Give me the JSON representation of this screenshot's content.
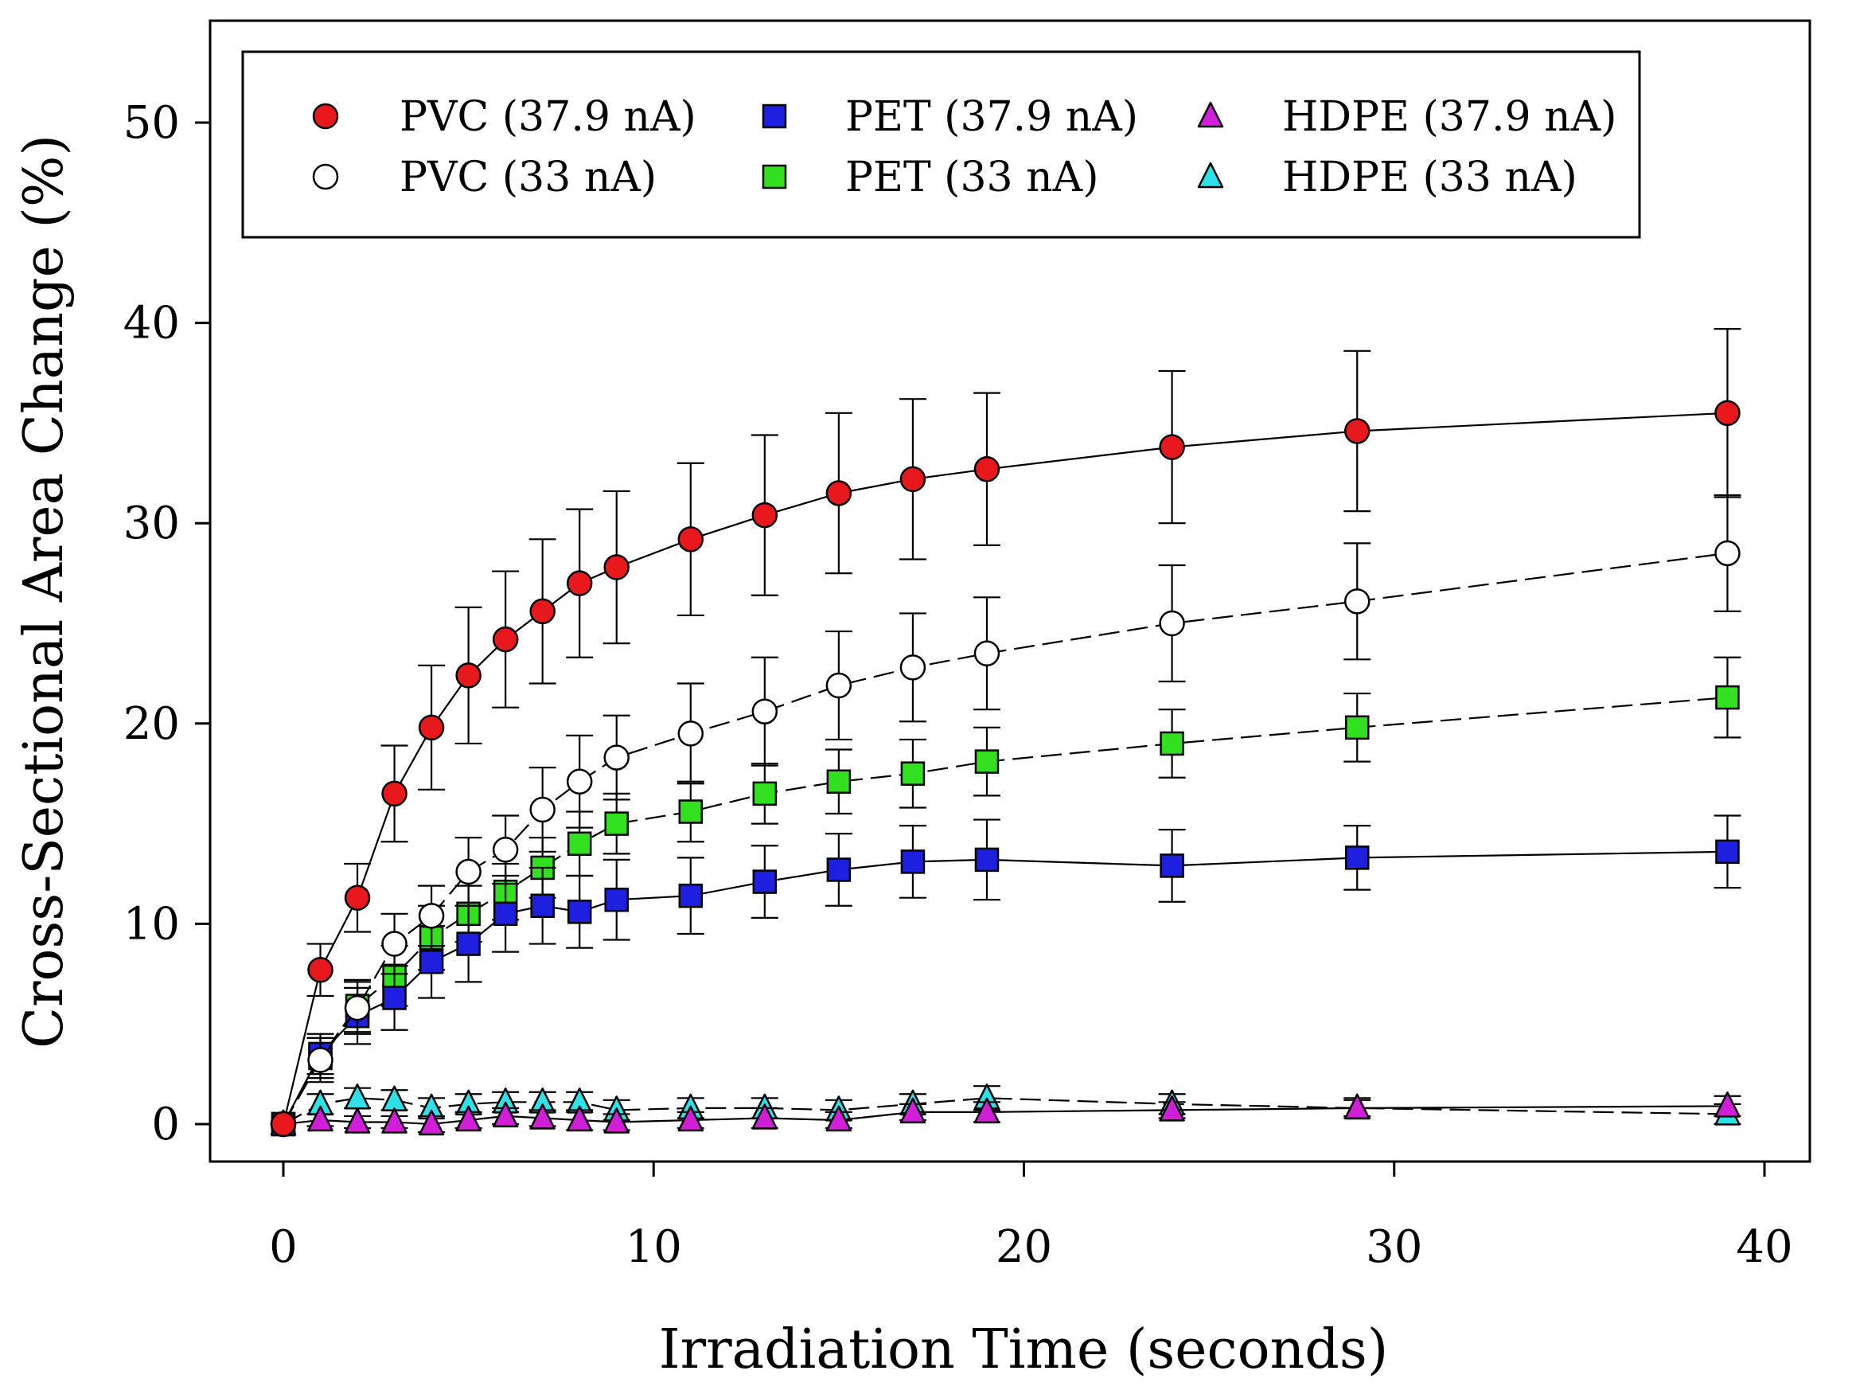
{
  "chart_data": {
    "type": "line",
    "title": "",
    "xlabel": "Irradiation Time (seconds)",
    "ylabel": "Cross-Sectional Area Change (%)",
    "xlim": [
      -2,
      41
    ],
    "ylim": [
      -2,
      55
    ],
    "xticks": [
      0,
      10,
      20,
      30,
      40
    ],
    "yticks": [
      0,
      10,
      20,
      30,
      40,
      50
    ],
    "xtick_labels": [
      "0",
      "10",
      "20",
      "30",
      "40"
    ],
    "ytick_labels": [
      "0",
      "10",
      "20",
      "30",
      "40",
      "50"
    ],
    "grid": false,
    "legend_position": "top",
    "series": [
      {
        "name": "PVC (37.9 nA)",
        "marker": "circle",
        "fill": "#e8191c",
        "line": "solid",
        "x": [
          0,
          1,
          2,
          3,
          4,
          5,
          6,
          7,
          8,
          9,
          11,
          13,
          15,
          17,
          19,
          24,
          29,
          39
        ],
        "y": [
          0,
          7.7,
          11.3,
          16.5,
          19.8,
          22.4,
          24.2,
          25.6,
          27.0,
          27.8,
          29.2,
          30.4,
          31.5,
          32.2,
          32.7,
          33.8,
          34.6,
          35.5
        ],
        "err": [
          0,
          1.3,
          1.7,
          2.4,
          3.1,
          3.4,
          3.4,
          3.6,
          3.7,
          3.8,
          3.8,
          4.0,
          4.0,
          4.0,
          3.8,
          3.8,
          4.0,
          4.2
        ]
      },
      {
        "name": "PVC (33 nA)",
        "marker": "circle",
        "fill": "#ffffff",
        "line": "dashed",
        "x": [
          0,
          1,
          2,
          3,
          4,
          5,
          6,
          7,
          8,
          9,
          11,
          13,
          15,
          17,
          19,
          24,
          29,
          39
        ],
        "y": [
          0,
          3.2,
          5.8,
          9.0,
          10.4,
          12.6,
          13.7,
          15.7,
          17.1,
          18.3,
          19.5,
          20.6,
          21.9,
          22.8,
          23.5,
          25.0,
          26.1,
          28.5
        ],
        "err": [
          0,
          1.1,
          1.3,
          1.5,
          1.5,
          1.7,
          1.7,
          2.1,
          2.3,
          2.1,
          2.5,
          2.7,
          2.7,
          2.7,
          2.8,
          2.9,
          2.9,
          2.9
        ]
      },
      {
        "name": "PET (37.9 nA)",
        "marker": "square",
        "fill": "#1f1fe0",
        "line": "solid",
        "x": [
          0,
          1,
          2,
          3,
          4,
          5,
          6,
          7,
          8,
          9,
          11,
          13,
          15,
          17,
          19,
          24,
          29,
          39
        ],
        "y": [
          0,
          3.5,
          5.4,
          6.3,
          8.1,
          9.0,
          10.5,
          10.9,
          10.6,
          11.2,
          11.4,
          12.1,
          12.7,
          13.1,
          13.2,
          12.9,
          13.3,
          13.6
        ],
        "err": [
          0,
          1.0,
          1.4,
          1.6,
          1.8,
          1.9,
          1.9,
          1.9,
          1.8,
          2.0,
          1.9,
          1.8,
          1.8,
          1.8,
          2.0,
          1.8,
          1.6,
          1.8
        ]
      },
      {
        "name": "PET (33 nA)",
        "marker": "square",
        "fill": "#33e01f",
        "line": "dashed",
        "x": [
          0,
          1,
          2,
          3,
          4,
          5,
          6,
          7,
          8,
          9,
          11,
          13,
          15,
          17,
          19,
          24,
          29,
          39
        ],
        "y": [
          0,
          3.3,
          5.9,
          7.4,
          9.3,
          10.5,
          11.6,
          12.8,
          14.0,
          15.0,
          15.6,
          16.5,
          17.1,
          17.5,
          18.1,
          19.0,
          19.8,
          21.3
        ],
        "err": [
          0,
          1.0,
          1.3,
          1.5,
          1.6,
          1.4,
          1.4,
          1.5,
          1.6,
          1.5,
          1.5,
          1.5,
          1.6,
          1.7,
          1.7,
          1.7,
          1.7,
          2.0
        ]
      },
      {
        "name": "HDPE (37.9 nA)",
        "marker": "triangle",
        "fill": "#d11fd9",
        "line": "solid",
        "x": [
          0,
          1,
          2,
          3,
          4,
          5,
          6,
          7,
          8,
          9,
          11,
          13,
          15,
          17,
          19,
          24,
          29,
          39
        ],
        "y": [
          0,
          0.2,
          0.1,
          0.1,
          0.0,
          0.2,
          0.4,
          0.3,
          0.2,
          0.1,
          0.2,
          0.3,
          0.2,
          0.6,
          0.6,
          0.7,
          0.8,
          0.9
        ],
        "err": [
          0,
          0.3,
          0.3,
          0.3,
          0.4,
          0.4,
          0.4,
          0.4,
          0.5,
          0.4,
          0.4,
          0.5,
          0.4,
          0.4,
          0.5,
          0.4,
          0.4,
          0.5
        ]
      },
      {
        "name": "HDPE (33 nA)",
        "marker": "triangle",
        "fill": "#2ee0e8",
        "line": "dashed",
        "x": [
          0,
          1,
          2,
          3,
          4,
          5,
          6,
          7,
          8,
          9,
          11,
          13,
          15,
          17,
          19,
          24,
          29,
          39
        ],
        "y": [
          0,
          1.0,
          1.3,
          1.2,
          0.8,
          1.0,
          1.1,
          1.1,
          1.1,
          0.7,
          0.8,
          0.8,
          0.7,
          1.0,
          1.3,
          1.0,
          0.8,
          0.5
        ],
        "err": [
          0,
          0.5,
          0.5,
          0.5,
          0.5,
          0.5,
          0.5,
          0.5,
          0.5,
          0.5,
          0.5,
          0.5,
          0.5,
          0.5,
          0.6,
          0.5,
          0.5,
          0.5
        ]
      }
    ]
  }
}
